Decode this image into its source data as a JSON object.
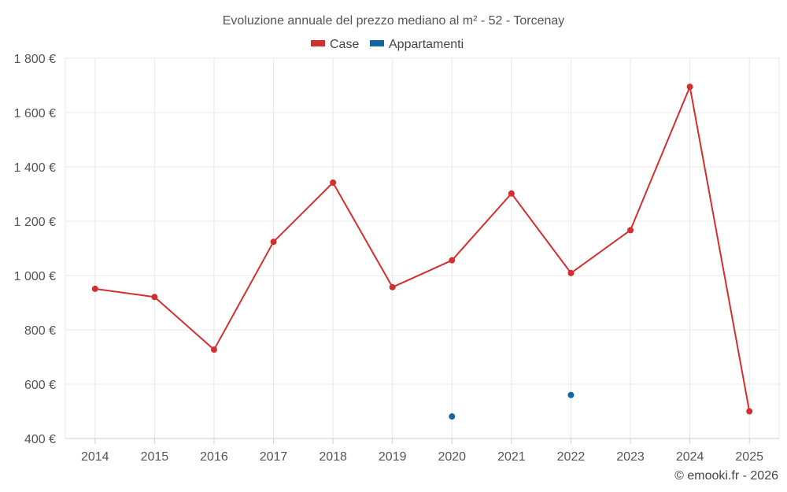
{
  "chart_data": {
    "type": "line",
    "title": "Evoluzione annuale del prezzo mediano al m² - 52 - Torcenay",
    "categories": [
      "2014",
      "2015",
      "2016",
      "2017",
      "2018",
      "2019",
      "2020",
      "2021",
      "2022",
      "2023",
      "2024",
      "2025"
    ],
    "series": [
      {
        "name": "Case",
        "color": "#d32f2f",
        "values": [
          951,
          921,
          727,
          1124,
          1342,
          957,
          1056,
          1302,
          1009,
          1167,
          1695,
          500
        ]
      },
      {
        "name": "Appartamenti",
        "color": "#1565a0",
        "values": [
          null,
          null,
          null,
          null,
          null,
          null,
          481,
          null,
          560,
          null,
          null,
          null
        ]
      }
    ],
    "ylim": [
      400,
      1800
    ],
    "yticks": [
      400,
      600,
      800,
      1000,
      1200,
      1400,
      1600,
      1800
    ],
    "ytick_labels": [
      "400 €",
      "600 €",
      "800 €",
      "1 000 €",
      "1 200 €",
      "1 400 €",
      "1 600 €",
      "1 800 €"
    ],
    "grid": true,
    "legend_position": "top-center",
    "xlabel": "",
    "ylabel": ""
  },
  "credit": "© emooki.fr - 2026"
}
